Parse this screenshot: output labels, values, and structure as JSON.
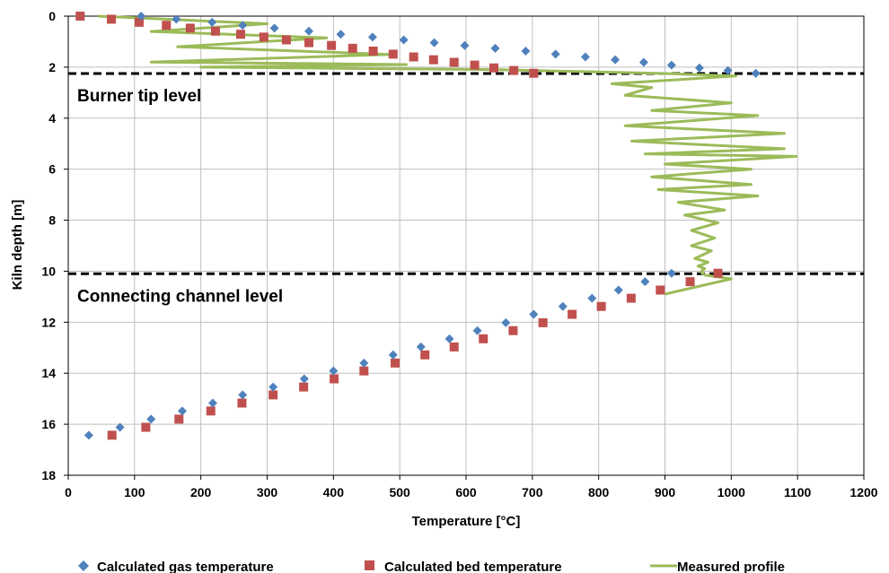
{
  "chart_data": {
    "type": "scatter",
    "xlabel": "Temperature [°C]",
    "ylabel": "Kiln depth  [m]",
    "xlim": [
      0,
      1200
    ],
    "ylim": [
      0,
      18
    ],
    "y_inverted": true,
    "xticks": [
      0,
      100,
      200,
      300,
      400,
      500,
      600,
      700,
      800,
      900,
      1000,
      1100,
      1200
    ],
    "yticks": [
      0,
      2,
      4,
      6,
      8,
      10,
      12,
      14,
      16,
      18
    ],
    "grid": true,
    "legend_position": "bottom",
    "colors": {
      "gas": "#4f81bd",
      "bed": "#c0504d",
      "measured": "#9bbb59",
      "grid": "#bfbfbf"
    },
    "annotations": [
      {
        "text": "Burner tip level",
        "y": 2.25
      },
      {
        "text": "Connecting channel level",
        "y": 10.1
      }
    ],
    "series": [
      {
        "name": "Calculated gas temperature",
        "marker": "diamond",
        "x": [
          110,
          163,
          217,
          263,
          311,
          363,
          411,
          459,
          506,
          552,
          598,
          644,
          690,
          735,
          780,
          825,
          868,
          910,
          952,
          995,
          1037,
          910,
          870,
          830,
          790,
          746,
          702,
          660,
          617,
          575,
          532,
          490,
          446,
          400,
          356,
          309,
          263,
          218,
          172,
          125,
          78,
          31
        ],
        "y": [
          0.0,
          0.12,
          0.24,
          0.36,
          0.47,
          0.59,
          0.71,
          0.82,
          0.93,
          1.04,
          1.15,
          1.26,
          1.37,
          1.49,
          1.6,
          1.71,
          1.81,
          1.92,
          2.03,
          2.13,
          2.24,
          10.08,
          10.41,
          10.74,
          11.06,
          11.38,
          11.69,
          12.02,
          12.33,
          12.65,
          12.97,
          13.28,
          13.6,
          13.91,
          14.22,
          14.54,
          14.85,
          15.17,
          15.48,
          15.8,
          16.12,
          16.43
        ]
      },
      {
        "name": "Calculated bed temperature",
        "marker": "square",
        "x": [
          18,
          65,
          107,
          148,
          184,
          222,
          260,
          295,
          329,
          363,
          397,
          429,
          460,
          490,
          521,
          551,
          582,
          613,
          642,
          672,
          702,
          980,
          938,
          893,
          849,
          804,
          760,
          716,
          671,
          626,
          582,
          538,
          493,
          446,
          401,
          355,
          309,
          262,
          215,
          167,
          117,
          66
        ],
        "y": [
          0.0,
          0.12,
          0.24,
          0.36,
          0.47,
          0.59,
          0.71,
          0.82,
          0.93,
          1.04,
          1.15,
          1.26,
          1.37,
          1.49,
          1.6,
          1.71,
          1.81,
          1.92,
          2.03,
          2.13,
          2.24,
          10.08,
          10.41,
          10.74,
          11.06,
          11.38,
          11.69,
          12.02,
          12.33,
          12.65,
          12.97,
          13.28,
          13.6,
          13.91,
          14.22,
          14.54,
          14.85,
          15.17,
          15.48,
          15.8,
          16.12,
          16.43
        ]
      },
      {
        "name": "Measured profile",
        "marker": "line",
        "x": [
          45,
          300,
          125,
          390,
          165,
          485,
          125,
          510,
          200,
          650,
          900,
          1007,
          820,
          880,
          840,
          1000,
          880,
          1040,
          840,
          1080,
          850,
          1080,
          870,
          1098,
          900,
          1030,
          880,
          1030,
          890,
          1040,
          920,
          990,
          930,
          980,
          940,
          975,
          940,
          970,
          945,
          965,
          950,
          960,
          955,
          955,
          960,
          1000,
          900
        ],
        "y": [
          0.0,
          0.3,
          0.6,
          0.85,
          1.2,
          1.5,
          1.8,
          1.9,
          2.0,
          2.1,
          2.25,
          2.35,
          2.65,
          2.8,
          3.1,
          3.4,
          3.7,
          3.9,
          4.3,
          4.6,
          4.9,
          5.2,
          5.4,
          5.5,
          5.8,
          6.0,
          6.3,
          6.6,
          6.8,
          7.05,
          7.3,
          7.6,
          7.8,
          8.1,
          8.4,
          8.7,
          9.0,
          9.2,
          9.5,
          9.65,
          9.8,
          9.9,
          10.0,
          10.05,
          10.15,
          10.3,
          10.9
        ]
      }
    ]
  }
}
